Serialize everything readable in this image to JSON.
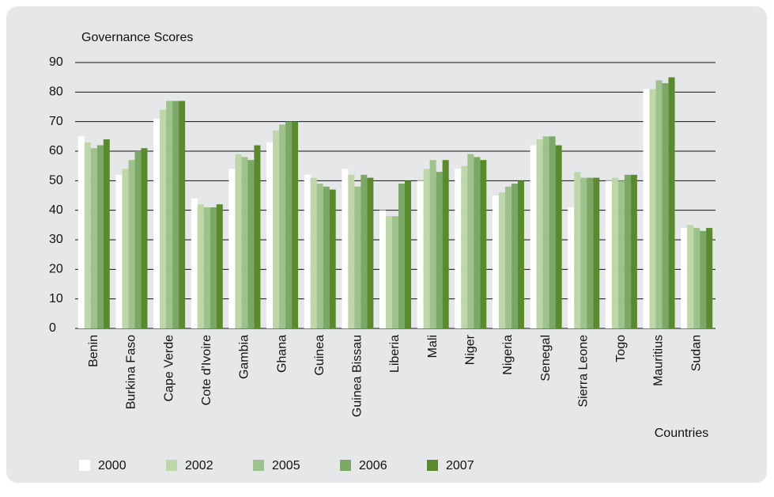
{
  "chart_data": {
    "type": "bar",
    "y_label": "Governance Scores",
    "x_label": "Countries",
    "categories": [
      "Benin",
      "Burkina Faso",
      "Cape Verde",
      "Cote d'Ivoire",
      "Gambia",
      "Ghana",
      "Guinea",
      "Guinea Bissau",
      "Liberia",
      "Mali",
      "Niger",
      "Nigeria",
      "Senegal",
      "Sierra Leone",
      "Togo",
      "Mauritius",
      "Sudan"
    ],
    "series": [
      {
        "name": "2000",
        "color": "#ffffff",
        "values": [
          65,
          52,
          71,
          44,
          54,
          63,
          52,
          54,
          40,
          50,
          54,
          45,
          62,
          41,
          50,
          81,
          34
        ]
      },
      {
        "name": "2002",
        "color": "#bdd7a9",
        "values": [
          63,
          54,
          74,
          42,
          59,
          67,
          51,
          52,
          38,
          54,
          55,
          46,
          64,
          53,
          51,
          81,
          35
        ]
      },
      {
        "name": "2005",
        "color": "#9ec28b",
        "values": [
          61,
          57,
          77,
          41,
          58,
          69,
          49,
          48,
          38,
          57,
          59,
          48,
          65,
          51,
          50,
          84,
          34
        ]
      },
      {
        "name": "2006",
        "color": "#7ba866",
        "values": [
          62,
          60,
          77,
          41,
          57,
          70,
          48,
          52,
          49,
          53,
          58,
          49,
          65,
          51,
          52,
          83,
          33
        ]
      },
      {
        "name": "2007",
        "color": "#5b8a2e",
        "values": [
          64,
          61,
          77,
          42,
          62,
          70,
          47,
          51,
          50,
          57,
          57,
          50,
          62,
          51,
          52,
          85,
          34
        ]
      }
    ],
    "ylim": [
      0,
      90
    ],
    "yticks": [
      0,
      10,
      20,
      30,
      40,
      50,
      60,
      70,
      80,
      90
    ],
    "grid": true
  }
}
